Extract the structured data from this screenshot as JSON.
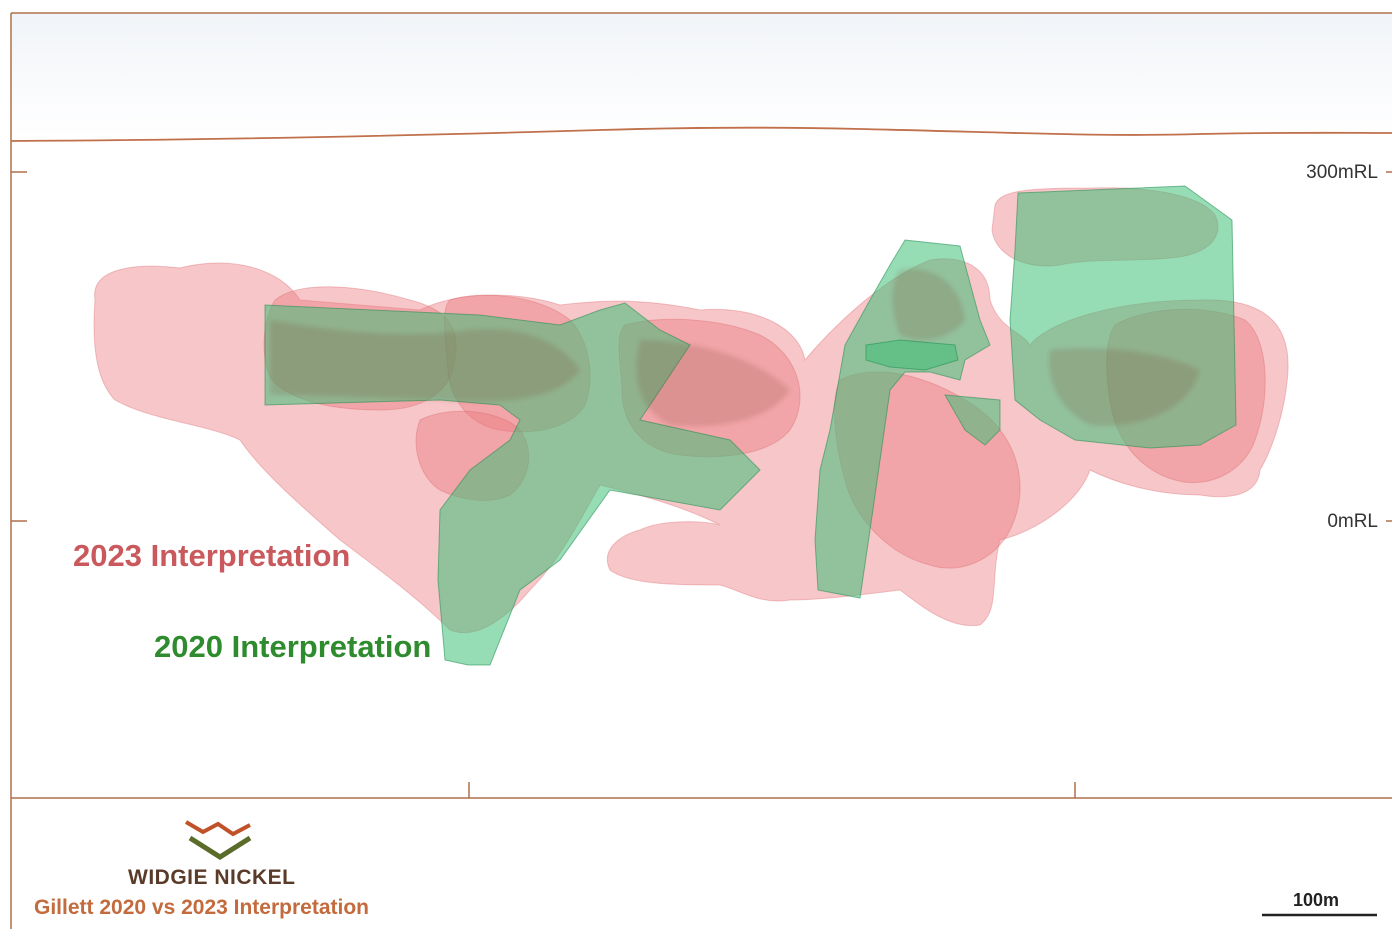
{
  "section": {
    "rl_labels": [
      "300mRL",
      "0mRL"
    ],
    "series": [
      {
        "name": "2023 Interpretation",
        "color": "#e9777b"
      },
      {
        "name": "2020 Interpretation",
        "color": "#3fbf78"
      }
    ],
    "frame_color": "#b0714c",
    "surface_color": "#c0704a"
  },
  "footer": {
    "brand": "WIDGIE NICKEL",
    "title": "Gillett 2020 vs 2023 Interpretation",
    "scale_label": "100m",
    "logo_colors": [
      "#c0522a",
      "#5a6b2a"
    ]
  }
}
